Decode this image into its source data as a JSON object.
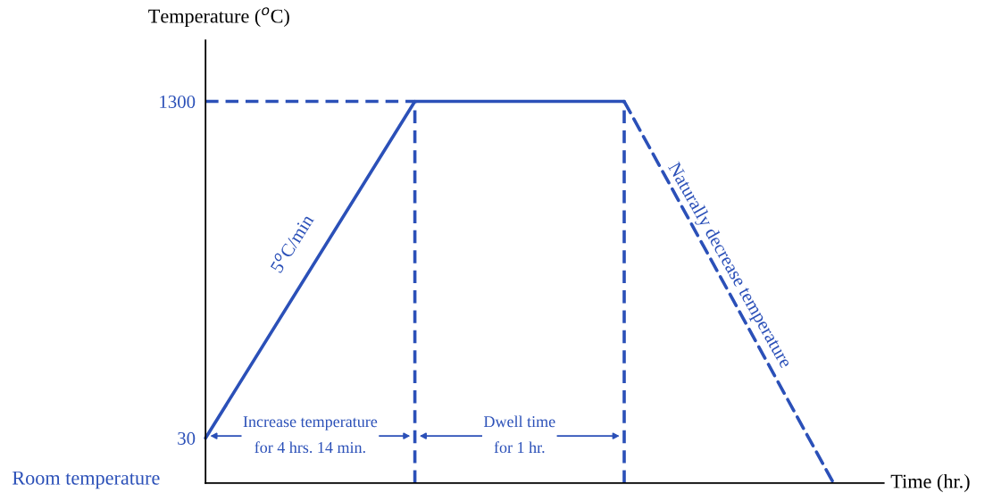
{
  "chart_data": {
    "type": "line",
    "ylabel": "Temperature ($^{o}$C)",
    "xlabel": "Time (hr.)",
    "categories": [
      null,
      null,
      null,
      null
    ],
    "series": [
      {
        "color": "#2b50b8",
        "values": [
          30,
          1300,
          1300,
          null
        ],
        "line_style": "solid"
      },
      {
        "color": "#2b50b8",
        "values": [
          null,
          null,
          1300,
          -140
        ],
        "line_style": "dashed"
      }
    ],
    "ylim": [
      -140,
      1530
    ],
    "yticks": [
      30,
      1300
    ],
    "tick_labels": "y",
    "ref_lines": [
      {
        "axis": "y",
        "value": 1300,
        "color": "#2b50b8",
        "line_style": "dashed"
      }
    ],
    "annotations": [
      "5$^{o}$C/min",
      "Naturally decrease temperature",
      "Increase temperature\nfor 4 hrs. 14 min.",
      "Dwell time\nfor 1 hr.",
      "Room temperature"
    ],
    "grid": false,
    "legend": false,
    "marker": "none"
  }
}
